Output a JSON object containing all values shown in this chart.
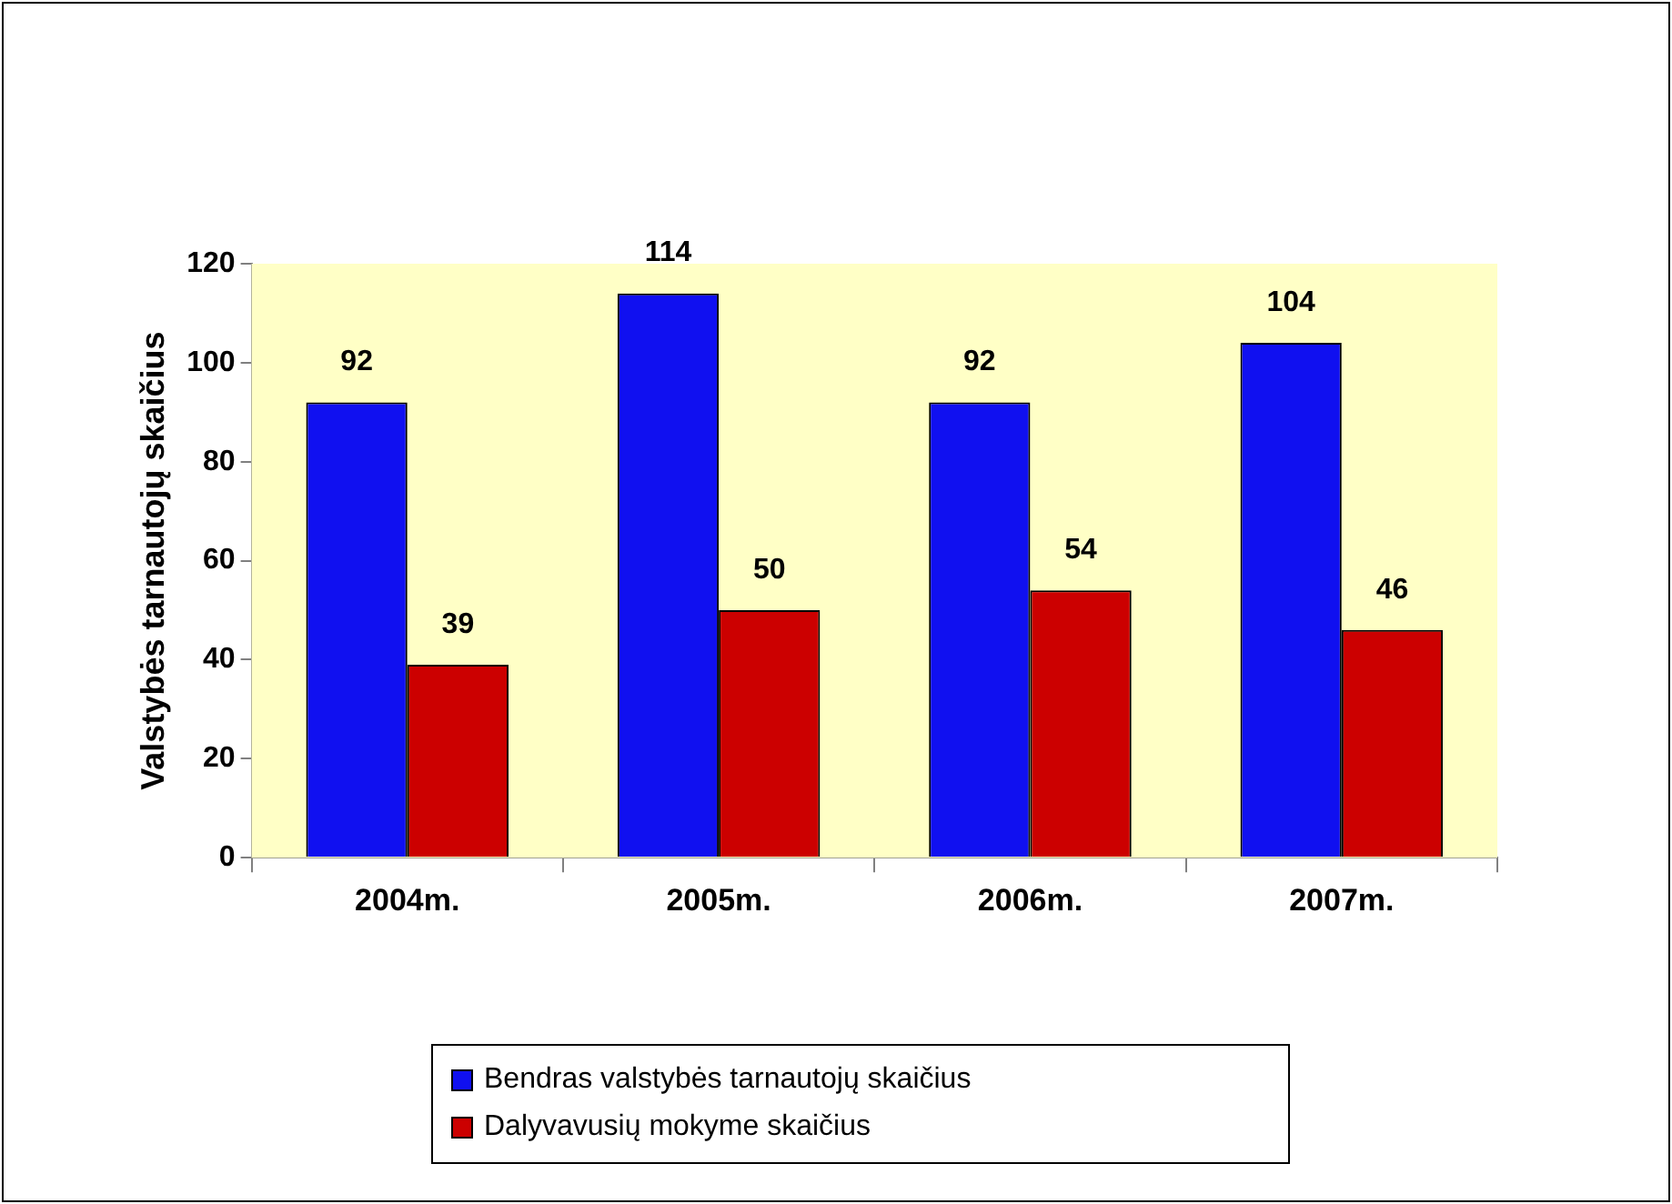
{
  "chart_data": {
    "type": "bar",
    "ylabel": "Valstybės tarnautojų skaičius",
    "categories": [
      "2004m.",
      "2005m.",
      "2006m.",
      "2007m."
    ],
    "series": [
      {
        "name": "Bendras valstybės tarnautojų skaičius",
        "color": "#1010f0",
        "values": [
          92,
          114,
          92,
          104
        ]
      },
      {
        "name": "Dalyvavusių mokyme skaičius",
        "color": "#cc0000",
        "values": [
          39,
          50,
          54,
          46
        ]
      }
    ],
    "ylim": [
      0,
      120
    ],
    "yticks": [
      0,
      20,
      40,
      60,
      80,
      100,
      120
    ],
    "grid": false,
    "legend": "bottom",
    "data_labels": true
  }
}
